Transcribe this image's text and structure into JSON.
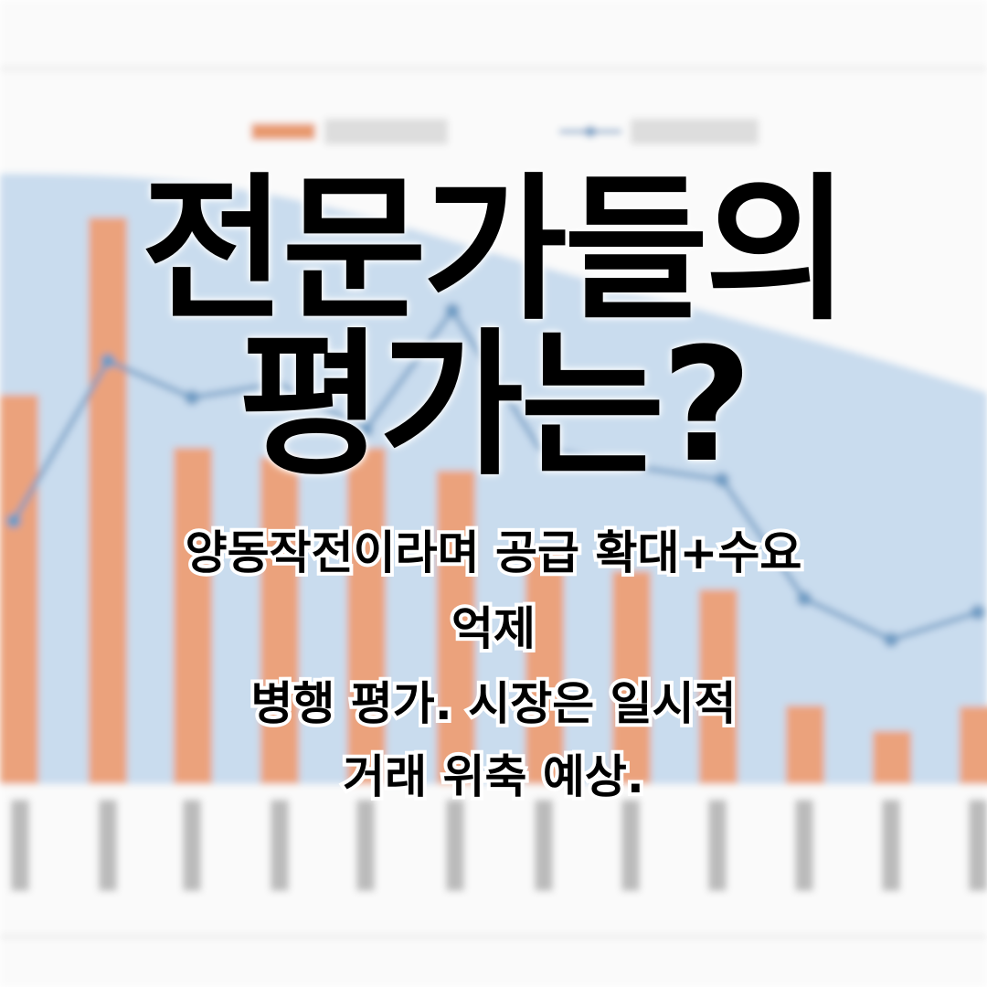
{
  "title": {
    "lines": [
      "전문가들의",
      "평가는?"
    ]
  },
  "subtitle": {
    "lines": [
      "양동작전이라며 공급 확대+수요",
      "억제",
      "병행 평가. 시장은 일시적",
      "거래 위축 예상."
    ]
  }
}
